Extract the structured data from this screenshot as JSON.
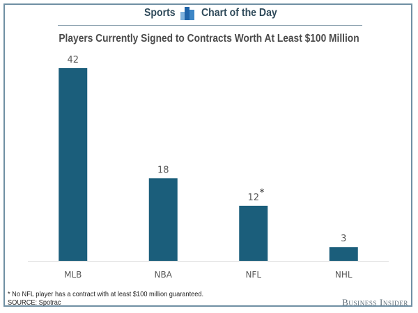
{
  "header": {
    "left_label": "Sports",
    "right_label": "Chart of the Day",
    "icon": "bar-chart-icon"
  },
  "colors": {
    "bar": "#1b5e7b",
    "frame": "#6f8fa3",
    "header_text": "#2f4a5a",
    "icon_light": "#7fb1dc",
    "icon_dark": "#1f63a8",
    "axis": "#d9d9d9",
    "label": "#595959"
  },
  "chart_data": {
    "type": "bar",
    "title": "Players Currently Signed to Contracts Worth At Least $100 Million",
    "categories": [
      "MLB",
      "NBA",
      "NFL",
      "NHL"
    ],
    "values": [
      42,
      18,
      12,
      3
    ],
    "data_labels": [
      "42",
      "18",
      "12",
      "3"
    ],
    "annotations": [
      {
        "category": "NFL",
        "marker": "*"
      }
    ],
    "xlabel": "",
    "ylabel": "",
    "ylim": [
      0,
      42
    ],
    "grid": false,
    "legend": "none"
  },
  "footnote": "* No NFL player has a contract with at least $100 million guaranteed.",
  "source": "SOURCE: Spotrac",
  "brand": "Business Insider"
}
